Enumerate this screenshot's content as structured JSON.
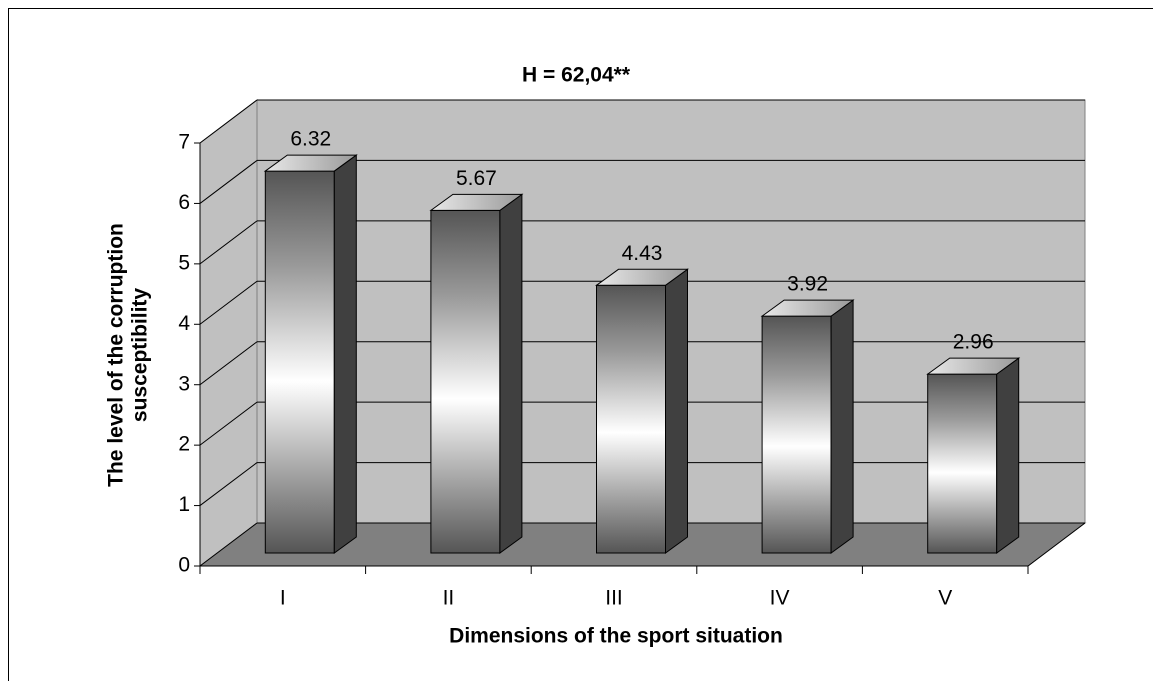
{
  "chart_data": {
    "type": "bar3d",
    "title": "H = 62,04**",
    "x_label": "Dimensions of the sport situation",
    "y_label": [
      "The level of the corruption",
      "susceptibility"
    ],
    "categories": [
      "I",
      "II",
      "III",
      "IV",
      "V"
    ],
    "values": [
      6.32,
      5.67,
      4.43,
      3.92,
      2.96
    ],
    "color": "#808080",
    "ylim": [
      0,
      7
    ],
    "yticks": [
      0,
      1,
      2,
      3,
      4,
      5,
      6,
      7
    ],
    "grid": true
  }
}
